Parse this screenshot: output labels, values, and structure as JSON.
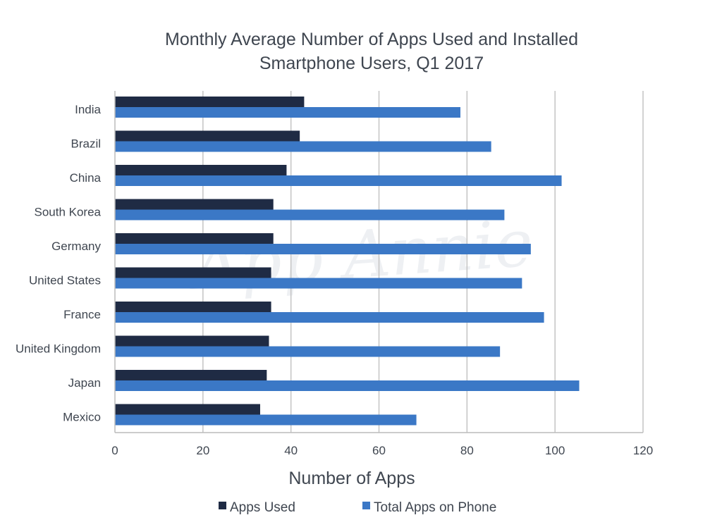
{
  "chart_data": {
    "type": "bar",
    "orientation": "horizontal",
    "title": "Monthly Average Number of Apps Used and Installed",
    "subtitle": "Smartphone Users, Q1 2017",
    "xlabel": "Number of Apps",
    "ylabel": "",
    "xlim": [
      0,
      120
    ],
    "xticks": [
      0,
      20,
      40,
      60,
      80,
      100,
      120
    ],
    "grid": true,
    "legend_position": "bottom",
    "watermark": "App Annie",
    "categories": [
      "India",
      "Brazil",
      "China",
      "South Korea",
      "Germany",
      "United States",
      "France",
      "United Kingdom",
      "Japan",
      "Mexico"
    ],
    "series": [
      {
        "name": "Apps Used",
        "color": "#1f2b44",
        "values": [
          43,
          42,
          39,
          36,
          36,
          35.5,
          35.5,
          35,
          34.5,
          33
        ]
      },
      {
        "name": "Total Apps on Phone",
        "color": "#3b78c6",
        "values": [
          78.5,
          85.5,
          101.5,
          88.5,
          94.5,
          92.5,
          97.5,
          87.5,
          105.5,
          68.5
        ]
      }
    ]
  }
}
